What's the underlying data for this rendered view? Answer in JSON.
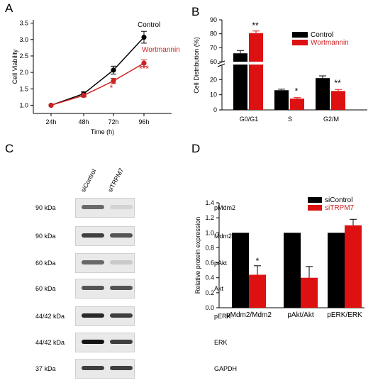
{
  "panels": {
    "a": "A",
    "b": "B",
    "c": "C",
    "d": "D"
  },
  "chart_data": [
    {
      "id": "A",
      "type": "line",
      "ylabel": "Cell Viability",
      "xlabel": "Time (h)",
      "categories": [
        "24h",
        "48h",
        "72h",
        "96h"
      ],
      "ylim": [
        0.75,
        3.6
      ],
      "yticks": [
        "1.0",
        "1.5",
        "2.0",
        "2.5",
        "3.0",
        "3.5"
      ],
      "yticks_values": [
        1.0,
        1.5,
        2.0,
        2.5,
        3.0,
        3.5
      ],
      "series": [
        {
          "name": "Control",
          "color": "#000000",
          "values": [
            1.0,
            1.35,
            2.07,
            3.07
          ],
          "errors": [
            0.03,
            0.06,
            0.12,
            0.18
          ]
        },
        {
          "name": "Wortmannin",
          "color": "#cc2222",
          "values": [
            1.0,
            1.3,
            1.74,
            2.28
          ],
          "errors": [
            0.03,
            0.05,
            0.08,
            0.1
          ]
        }
      ],
      "annotations": [
        {
          "text": "*",
          "x": "72h"
        },
        {
          "text": "***",
          "x": "96h"
        }
      ]
    },
    {
      "id": "B",
      "type": "bar",
      "ylabel": "Cell Distribution (%)",
      "categories": [
        "G0/G1",
        "S",
        "G2/M"
      ],
      "axis_break": [
        30,
        60
      ],
      "yticks": [
        "0",
        "10",
        "20",
        "60",
        "70",
        "80",
        "90"
      ],
      "yticks_values": [
        0,
        10,
        20,
        60,
        70,
        80,
        90
      ],
      "series": [
        {
          "name": "Control",
          "color": "#000000",
          "values": [
            66,
            13,
            21
          ],
          "errors": [
            2,
            0.7,
            1.5
          ]
        },
        {
          "name": "Wortmannin",
          "color": "#dd1111",
          "values": [
            80.5,
            7.5,
            12.5
          ],
          "errors": [
            1.5,
            0.6,
            1.0
          ]
        }
      ],
      "annotations": [
        {
          "text": "**",
          "category": "G0/G1"
        },
        {
          "text": "*",
          "category": "S"
        },
        {
          "text": "**",
          "category": "G2/M"
        }
      ]
    },
    {
      "id": "D",
      "type": "bar",
      "ylabel": "Relative protein expression",
      "categories": [
        "pMdm2/Mdm2",
        "pAkt/Akt",
        "pERK/ERK"
      ],
      "ylim": [
        0,
        1.4
      ],
      "yticks": [
        "0.0",
        "0.2",
        "0.4",
        "0.6",
        "0.8",
        "1.0",
        "1.2",
        "1.4"
      ],
      "yticks_values": [
        0,
        0.2,
        0.4,
        0.6,
        0.8,
        1.0,
        1.2,
        1.4
      ],
      "series": [
        {
          "name": "siControl",
          "color": "#000000",
          "values": [
            1.0,
            1.0,
            1.0
          ],
          "errors": [
            0,
            0,
            0
          ]
        },
        {
          "name": "siTRPM7",
          "color": "#dd1111",
          "values": [
            0.44,
            0.4,
            1.1
          ],
          "errors": [
            0.12,
            0.15,
            0.08
          ]
        }
      ],
      "annotations": [
        {
          "text": "*",
          "category": "pMdm2/Mdm2"
        },
        {
          "text": "*",
          "category": "pAkt/Akt"
        }
      ]
    }
  ],
  "blot": {
    "lanes": [
      "siControl",
      "siTRPM7"
    ],
    "rows": [
      {
        "kda": "90 kDa",
        "name": "pMdm2"
      },
      {
        "kda": "90 kDa",
        "name": "Mdm2"
      },
      {
        "kda": "60 kDa",
        "name": "pAkt"
      },
      {
        "kda": "60 kDa",
        "name": "Akt"
      },
      {
        "kda": "44/42 kDa",
        "name": "pERK"
      },
      {
        "kda": "44/42 kDa",
        "name": "ERK"
      },
      {
        "kda": "37 kDa",
        "name": "GAPDH"
      }
    ]
  }
}
